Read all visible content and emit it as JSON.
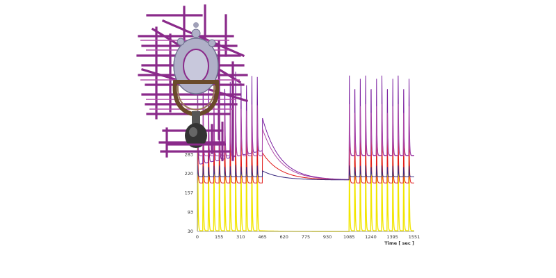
{
  "chart_data": {
    "type": "line",
    "xlabel": "Time [ sec ]",
    "ylabel": "",
    "x_ticks": [
      "0",
      "155",
      "310",
      "465",
      "620",
      "775",
      "930",
      "1085",
      "1240",
      "1395",
      "1551"
    ],
    "y_ticks": [
      "30",
      "93",
      "157",
      "220",
      "283"
    ],
    "xlim": [
      0,
      1551
    ],
    "ylim": [
      30,
      560
    ],
    "cycles": {
      "phase_a": {
        "start": 0,
        "end": 465,
        "period": 38.75
      },
      "phase_b": {
        "start": 1085,
        "end": 1551,
        "period": 38.8
      }
    },
    "series": [
      {
        "color": "#f2e600",
        "peak": 330,
        "base": 32,
        "rest": 30
      },
      {
        "color": "#e01a1a",
        "peak": 390,
        "base": 190,
        "rest": 200
      },
      {
        "color": "#7a1fa0",
        "peak": 560,
        "base": 250,
        "rest": 200
      },
      {
        "color": "#b04aa8",
        "peak": 460,
        "base": 280,
        "rest": 200
      },
      {
        "color": "#3a2a80",
        "peak": 250,
        "base": 210,
        "rest": 200
      }
    ],
    "grid": false,
    "legend": "none"
  },
  "overlay": {
    "description_icon": "engine-assembly-icon",
    "colors": {
      "pipes": "#8a2a8a",
      "body": "#b0b0c8",
      "frame": "#6a4a2a",
      "dark": "#333333"
    }
  }
}
